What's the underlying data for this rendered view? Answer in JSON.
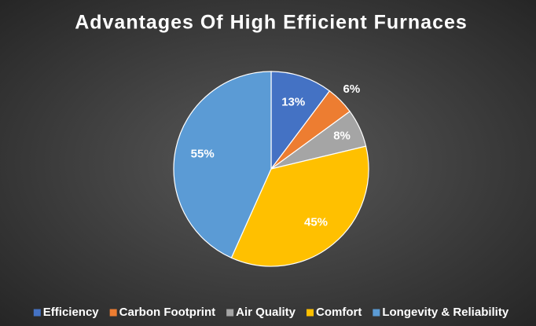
{
  "chart_data": {
    "type": "pie",
    "title": "Advantages Of High Efficient Furnaces",
    "categories": [
      "Efficiency",
      "Carbon Footprint",
      "Air Quality",
      "Comfort",
      "Longevity & Reliability"
    ],
    "values": [
      13,
      6,
      8,
      45,
      55
    ],
    "value_labels": [
      "13%",
      "6%",
      "8%",
      "45%",
      "55%"
    ],
    "colors": [
      "#4472c4",
      "#ed7d31",
      "#a5a5a5",
      "#ffc000",
      "#5b9bd5"
    ],
    "legend": "bottom"
  }
}
